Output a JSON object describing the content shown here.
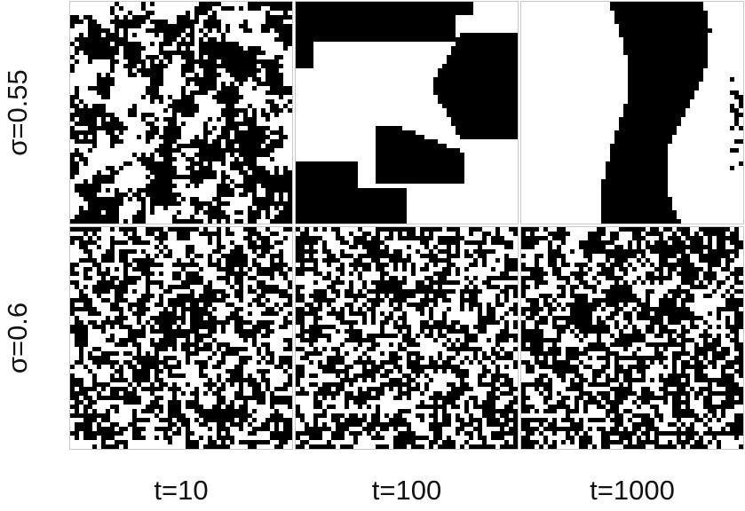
{
  "figure": {
    "rows": [
      {
        "label": "σ=0.55"
      },
      {
        "label": "σ=0.6"
      }
    ],
    "columns": [
      {
        "label": "t=10"
      },
      {
        "label": "t=100"
      },
      {
        "label": "t=1000"
      }
    ],
    "colors": {
      "occupied": "#000000",
      "empty": "#ffffff",
      "panel_border": "#c8c8c8"
    },
    "lattice_cells_per_side": 50,
    "panels": [
      {
        "row": 0,
        "col": 0,
        "pattern": "clustered",
        "black_fraction": 0.5
      },
      {
        "row": 0,
        "col": 1,
        "pattern": "segregated-domains",
        "black_fraction": 0.45
      },
      {
        "row": 0,
        "col": 2,
        "pattern": "vertical-band",
        "black_fraction": 0.3
      },
      {
        "row": 1,
        "col": 0,
        "pattern": "mixed",
        "black_fraction": 0.5
      },
      {
        "row": 1,
        "col": 1,
        "pattern": "mixed",
        "black_fraction": 0.5
      },
      {
        "row": 1,
        "col": 2,
        "pattern": "mixed",
        "black_fraction": 0.5
      }
    ]
  }
}
